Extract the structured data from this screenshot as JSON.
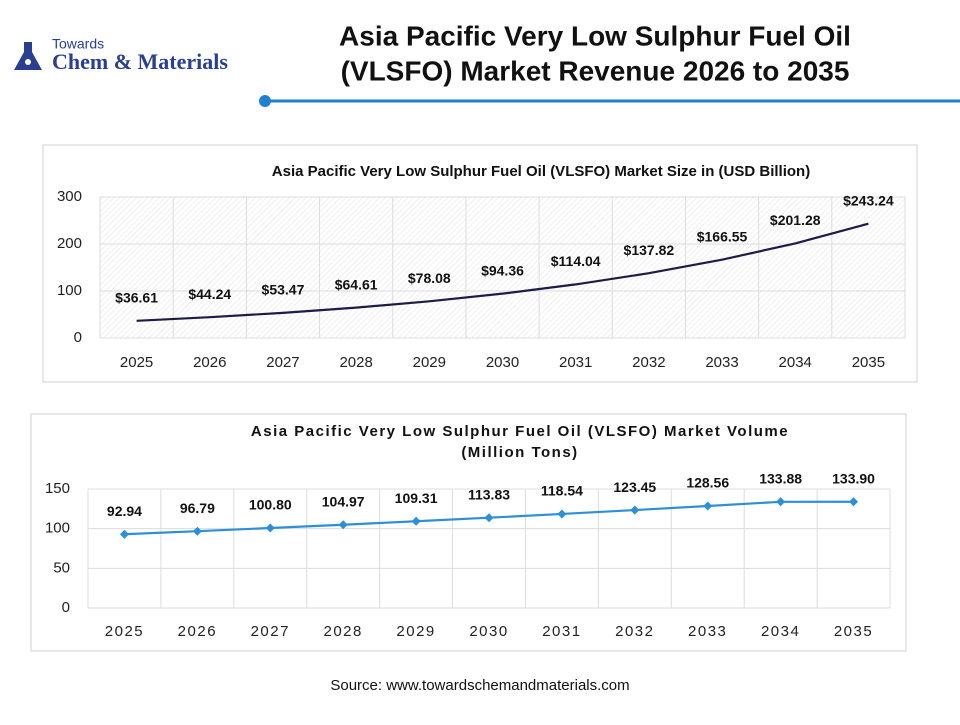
{
  "header": {
    "logo_top": "Towards",
    "logo_main": "Chem & Materials",
    "title": [
      "Asia Pacific Very Low Sulphur Fuel Oil",
      "(VLSFO) Market Revenue 2026 to 2035"
    ]
  },
  "source": "Source: www.towardschemandmaterials.com",
  "chart_data": [
    {
      "type": "line",
      "title": [
        "Asia Pacific Very Low Sulphur Fuel Oil (VLSFO) Market Size in (USD Billion)"
      ],
      "categories": [
        "2025",
        "2026",
        "2027",
        "2028",
        "2029",
        "2030",
        "2031",
        "2032",
        "2033",
        "2034",
        "2035"
      ],
      "values": [
        36.61,
        44.24,
        53.47,
        64.61,
        78.08,
        94.36,
        114.04,
        137.82,
        166.55,
        201.28,
        243.24
      ],
      "value_labels": [
        "$36.61",
        "$44.24",
        "$53.47",
        "$64.61",
        "$78.08",
        "$94.36",
        "$114.04",
        "$137.82",
        "$166.55",
        "$201.28",
        "$243.24"
      ],
      "color": "#1c1c4a",
      "marker": "none",
      "ylim": [
        0,
        300
      ],
      "yticks": [
        0,
        100,
        200,
        300
      ],
      "grid": true
    },
    {
      "type": "line",
      "title": [
        "Asia Pacific Very Low Sulphur Fuel Oil (VLSFO) Market Volume",
        "(Million Tons)"
      ],
      "categories": [
        "2025",
        "2026",
        "2027",
        "2028",
        "2029",
        "2030",
        "2031",
        "2032",
        "2033",
        "2034",
        "2035"
      ],
      "values": [
        92.94,
        96.79,
        100.8,
        104.97,
        109.31,
        113.83,
        118.54,
        123.45,
        128.56,
        133.88,
        133.9
      ],
      "value_labels": [
        "92.94",
        "96.79",
        "100.80",
        "104.97",
        "109.31",
        "113.83",
        "118.54",
        "123.45",
        "128.56",
        "133.88",
        "133.90"
      ],
      "color": "#2e8fd9",
      "marker": "diamond",
      "ylim": [
        0,
        150
      ],
      "yticks": [
        0,
        50,
        100,
        150
      ],
      "grid": true
    }
  ]
}
